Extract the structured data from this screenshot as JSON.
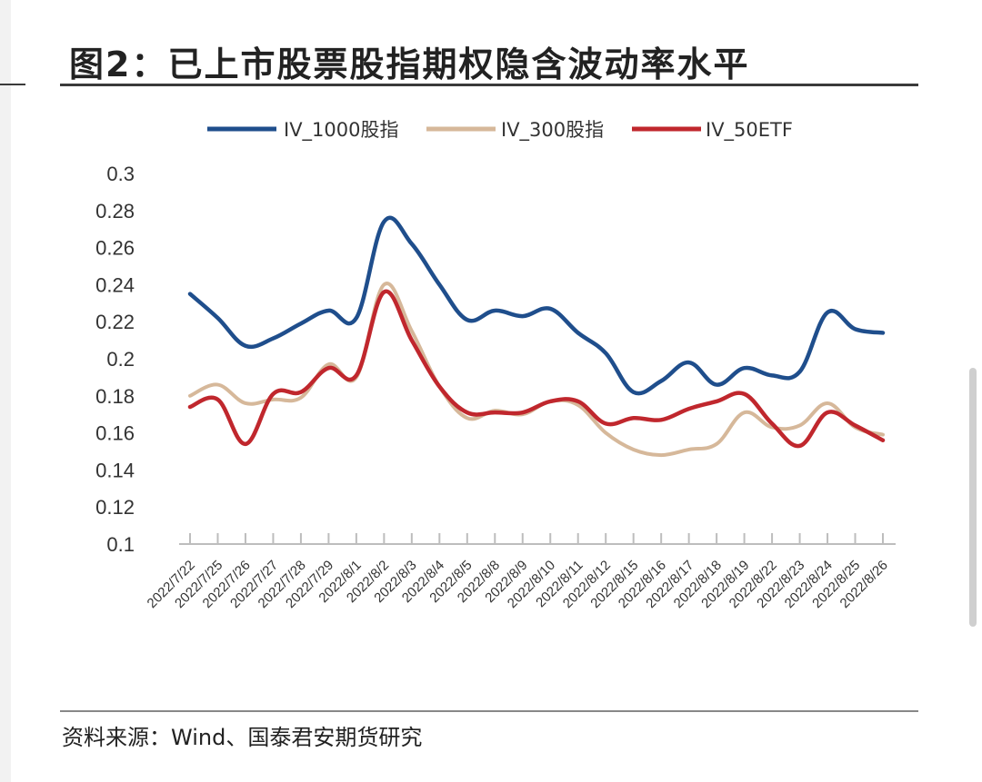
{
  "page": {
    "title": "图2：已上市股票股指期权隐含波动率水平",
    "source": "资料来源：Wind、国泰君安期货研究"
  },
  "chart_data": {
    "type": "line",
    "title": "图2：已上市股票股指期权隐含波动率水平",
    "xlabel": "",
    "ylabel": "",
    "ylim": [
      0.1,
      0.3
    ],
    "yticks": [
      "0.1",
      "0.12",
      "0.14",
      "0.16",
      "0.18",
      "0.2",
      "0.22",
      "0.24",
      "0.26",
      "0.28",
      "0.3"
    ],
    "grid": false,
    "legend_position": "top",
    "categories": [
      "2022/7/22",
      "2022/7/25",
      "2022/7/26",
      "2022/7/27",
      "2022/7/28",
      "2022/7/29",
      "2022/8/1",
      "2022/8/2",
      "2022/8/3",
      "2022/8/4",
      "2022/8/5",
      "2022/8/8",
      "2022/8/9",
      "2022/8/10",
      "2022/8/11",
      "2022/8/12",
      "2022/8/15",
      "2022/8/16",
      "2022/8/17",
      "2022/8/18",
      "2022/8/19",
      "2022/8/22",
      "2022/8/23",
      "2022/8/24",
      "2022/8/25",
      "2022/8/26"
    ],
    "series": [
      {
        "name": "IV_1000股指",
        "color": "#1f4e8c",
        "values": [
          0.235,
          0.222,
          0.207,
          0.211,
          0.219,
          0.226,
          0.222,
          0.274,
          0.262,
          0.24,
          0.221,
          0.226,
          0.223,
          0.227,
          0.214,
          0.203,
          0.182,
          0.188,
          0.198,
          0.186,
          0.195,
          0.191,
          0.193,
          0.225,
          0.216,
          0.214
        ]
      },
      {
        "name": "IV_300股指",
        "color": "#d6b89a",
        "values": [
          0.18,
          0.186,
          0.176,
          0.178,
          0.179,
          0.197,
          0.19,
          0.24,
          0.215,
          0.185,
          0.168,
          0.172,
          0.17,
          0.177,
          0.175,
          0.16,
          0.151,
          0.148,
          0.151,
          0.154,
          0.171,
          0.163,
          0.164,
          0.176,
          0.163,
          0.159
        ]
      },
      {
        "name": "IV_50ETF",
        "color": "#c0272d",
        "values": [
          0.174,
          0.178,
          0.154,
          0.181,
          0.182,
          0.195,
          0.191,
          0.236,
          0.21,
          0.185,
          0.171,
          0.171,
          0.171,
          0.177,
          0.177,
          0.165,
          0.168,
          0.167,
          0.173,
          0.177,
          0.181,
          0.165,
          0.153,
          0.171,
          0.164,
          0.156
        ]
      }
    ]
  }
}
